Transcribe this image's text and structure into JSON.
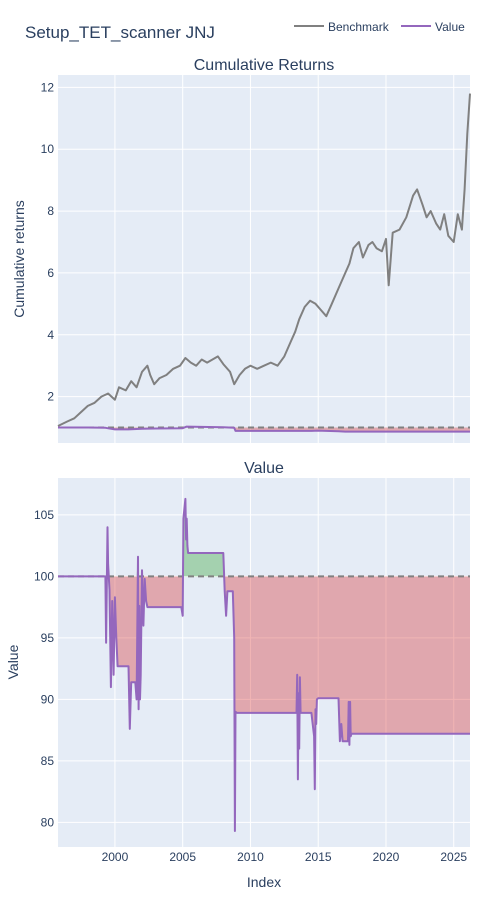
{
  "title": "Setup_TET_scanner JNJ",
  "legend": {
    "placement": "top-right",
    "items": [
      {
        "label": "Benchmark",
        "color": "#808080"
      },
      {
        "label": "Value",
        "color": "#9467bd"
      }
    ]
  },
  "colors": {
    "plot_bg": "#e5ecf6",
    "grid": "#ffffff",
    "benchmark": "#808080",
    "value": "#9467bd",
    "reference": "#808080",
    "fill_positive": "rgba(44,160,44,0.35)",
    "fill_negative": "rgba(214,39,40,0.35)"
  },
  "chart_data": [
    {
      "type": "line",
      "title": "Cumulative Returns",
      "xlabel": "",
      "ylabel": "Cumulative returns",
      "xlim": [
        1995.8,
        2026.2
      ],
      "ylim": [
        0.5,
        12.4
      ],
      "yticks": [
        2,
        4,
        6,
        8,
        10,
        12
      ],
      "xticks": [
        2000,
        2005,
        2010,
        2015,
        2020,
        2025
      ],
      "grid": true,
      "reference_line": 1,
      "series": [
        {
          "name": "Benchmark",
          "x": [
            1995.8,
            1996.5,
            1997.0,
            1997.5,
            1998.0,
            1998.5,
            1999.0,
            1999.5,
            2000.0,
            2000.3,
            2000.8,
            2001.2,
            2001.6,
            2002.0,
            2002.4,
            2002.6,
            2002.9,
            2003.3,
            2003.8,
            2004.3,
            2004.8,
            2005.2,
            2005.6,
            2006.0,
            2006.4,
            2006.8,
            2007.2,
            2007.6,
            2008.0,
            2008.5,
            2008.8,
            2009.2,
            2009.6,
            2010.0,
            2010.5,
            2011.0,
            2011.5,
            2012.0,
            2012.5,
            2013.0,
            2013.3,
            2013.6,
            2014.0,
            2014.4,
            2014.8,
            2015.2,
            2015.6,
            2016.0,
            2016.5,
            2017.0,
            2017.3,
            2017.6,
            2018.0,
            2018.3,
            2018.7,
            2019.0,
            2019.3,
            2019.7,
            2020.0,
            2020.2,
            2020.5,
            2021.0,
            2021.5,
            2022.0,
            2022.3,
            2022.7,
            2023.0,
            2023.3,
            2023.7,
            2024.0,
            2024.3,
            2024.6,
            2025.0,
            2025.3,
            2025.6,
            2025.8,
            2026.0,
            2026.2
          ],
          "values": [
            1.05,
            1.2,
            1.3,
            1.5,
            1.7,
            1.8,
            2.0,
            2.1,
            1.9,
            2.3,
            2.2,
            2.5,
            2.3,
            2.8,
            3.0,
            2.7,
            2.4,
            2.6,
            2.7,
            2.9,
            3.0,
            3.25,
            3.1,
            3.0,
            3.2,
            3.1,
            3.2,
            3.3,
            3.05,
            2.8,
            2.4,
            2.7,
            2.9,
            3.0,
            2.9,
            3.0,
            3.1,
            3.0,
            3.3,
            3.8,
            4.1,
            4.5,
            4.9,
            5.1,
            5.0,
            4.8,
            4.6,
            5.0,
            5.5,
            6.0,
            6.3,
            6.8,
            7.0,
            6.5,
            6.9,
            7.0,
            6.8,
            6.7,
            7.1,
            5.6,
            7.3,
            7.4,
            7.8,
            8.5,
            8.7,
            8.2,
            7.8,
            8.0,
            7.6,
            7.4,
            7.9,
            7.2,
            7.0,
            7.9,
            7.4,
            8.7,
            10.5,
            11.8
          ]
        },
        {
          "name": "Value",
          "x": [
            1995.8,
            1998.0,
            1999.3,
            2000.0,
            2001.0,
            2002.0,
            2003.0,
            2005.0,
            2005.3,
            2008.0,
            2008.8,
            2008.9,
            2010.0,
            2012.0,
            2013.5,
            2014.5,
            2015.0,
            2016.5,
            2017.0,
            2018.0,
            2020.0,
            2022.0,
            2024.0,
            2026.2
          ],
          "values": [
            1.0,
            1.0,
            0.99,
            0.94,
            0.94,
            0.96,
            0.97,
            0.98,
            1.03,
            1.01,
            0.99,
            0.89,
            0.89,
            0.89,
            0.89,
            0.89,
            0.9,
            0.88,
            0.87,
            0.87,
            0.87,
            0.87,
            0.87,
            0.87
          ]
        }
      ]
    },
    {
      "type": "area",
      "title": "Value",
      "xlabel": "Index",
      "ylabel": "Value",
      "xlim": [
        1995.8,
        2026.2
      ],
      "ylim": [
        78,
        108
      ],
      "yticks": [
        80,
        85,
        90,
        95,
        100,
        105
      ],
      "xticks": [
        2000,
        2005,
        2010,
        2015,
        2020,
        2025
      ],
      "grid": true,
      "reference_line": 100,
      "series": [
        {
          "name": "Value",
          "x": [
            1995.8,
            1999.3,
            1999.35,
            1999.45,
            1999.5,
            1999.6,
            1999.7,
            1999.8,
            1999.9,
            2000.0,
            2000.1,
            2000.2,
            2000.3,
            2000.5,
            2001.0,
            2001.1,
            2001.2,
            2001.4,
            2001.5,
            2001.6,
            2001.7,
            2001.75,
            2001.8,
            2001.85,
            2001.9,
            2002.0,
            2002.1,
            2002.2,
            2002.3,
            2002.4,
            2002.5,
            2004.9,
            2005.0,
            2005.05,
            2005.2,
            2005.25,
            2005.3,
            2005.35,
            2005.4,
            2005.5,
            2006.0,
            2007.0,
            2008.0,
            2008.1,
            2008.2,
            2008.3,
            2008.7,
            2008.8,
            2008.85,
            2008.9,
            2009.0,
            2010.0,
            2011.0,
            2012.0,
            2013.0,
            2013.4,
            2013.45,
            2013.5,
            2013.55,
            2013.6,
            2013.65,
            2013.7,
            2014.0,
            2014.5,
            2014.7,
            2014.75,
            2014.8,
            2014.85,
            2014.9,
            2015.0,
            2016.0,
            2016.5,
            2016.6,
            2016.7,
            2016.8,
            2017.0,
            2017.2,
            2017.25,
            2017.3,
            2017.35,
            2017.4,
            2017.45,
            2017.5,
            2017.6,
            2018.0,
            2020.0,
            2022.0,
            2024.0,
            2026.2
          ],
          "values": [
            100,
            100,
            94.6,
            104.0,
            101.0,
            98.9,
            91.0,
            98.0,
            92.0,
            98.3,
            95.0,
            92.7,
            92.7,
            92.7,
            92.7,
            87.6,
            91.4,
            91.4,
            91.4,
            90.0,
            101.6,
            89.2,
            97.6,
            90.0,
            92.0,
            100.5,
            96.0,
            99.8,
            98.0,
            97.5,
            97.5,
            97.5,
            96.8,
            104.7,
            106.3,
            103.0,
            104.7,
            102.5,
            101.9,
            101.9,
            101.9,
            101.9,
            101.9,
            98.8,
            96.8,
            98.8,
            98.8,
            95.0,
            79.3,
            89.0,
            88.9,
            88.9,
            88.9,
            88.9,
            88.9,
            88.9,
            92.0,
            83.5,
            90.5,
            86.0,
            91.8,
            88.9,
            88.9,
            88.9,
            87.0,
            82.7,
            89.2,
            88.0,
            90.0,
            90.1,
            90.1,
            90.1,
            86.6,
            88.0,
            86.6,
            86.6,
            86.6,
            89.8,
            86.3,
            89.8,
            87.0,
            87.2,
            87.2,
            87.2,
            87.2,
            87.2,
            87.2,
            87.2,
            87.2
          ]
        }
      ]
    }
  ]
}
